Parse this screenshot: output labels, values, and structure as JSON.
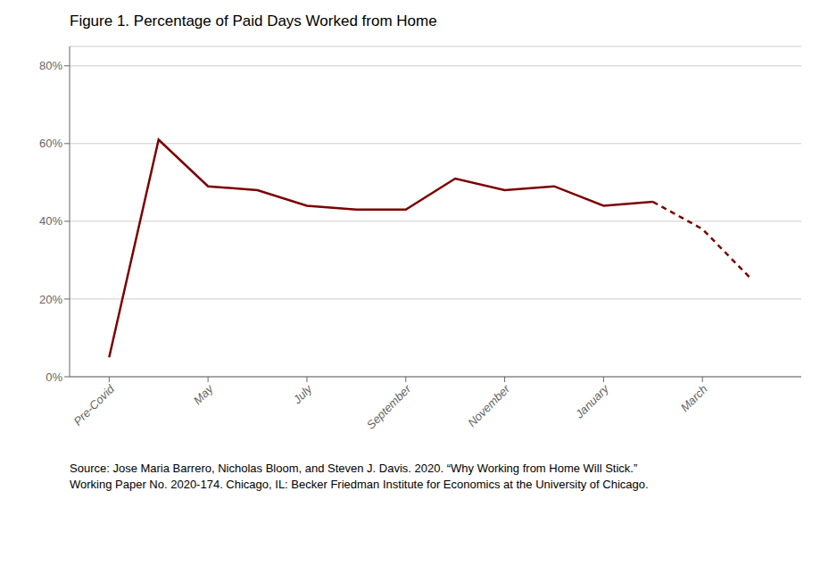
{
  "chart_data": {
    "type": "line",
    "title": "Figure 1. Percentage of Paid Days Worked from Home",
    "x": [
      0,
      1,
      2,
      3,
      4,
      5,
      6,
      7,
      8,
      9,
      10,
      11,
      12,
      13
    ],
    "series": [
      {
        "color": "#7B0000",
        "line_style": "solid",
        "values": [
          5,
          61,
          49,
          48,
          44,
          43,
          43,
          51,
          48,
          49,
          44,
          45,
          null,
          null
        ]
      },
      {
        "color": "#7B0000",
        "line_style": "dashed",
        "values": [
          null,
          null,
          null,
          null,
          null,
          null,
          null,
          null,
          null,
          null,
          null,
          45,
          38,
          25
        ]
      }
    ],
    "xlim": [
      -0.8,
      14
    ],
    "xticks": [
      {
        "value": 0,
        "label": "Pre-Covid"
      },
      {
        "value": 2,
        "label": "May"
      },
      {
        "value": 4,
        "label": "July"
      },
      {
        "value": 6,
        "label": "September"
      },
      {
        "value": 8,
        "label": "November"
      },
      {
        "value": 10,
        "label": "January"
      },
      {
        "value": 12,
        "label": "March"
      }
    ],
    "ylim": [
      0,
      85
    ],
    "yticks": [
      {
        "value": 0,
        "label": "0%"
      },
      {
        "value": 20,
        "label": "20%"
      },
      {
        "value": 40,
        "label": "40%"
      },
      {
        "value": 60,
        "label": "60%"
      },
      {
        "value": 80,
        "label": "80%"
      }
    ],
    "grid": true,
    "annotations": [
      "Source: Jose Maria Barrero, Nicholas Bloom, and Steven J. Davis. 2020. “Why Working from Home Will Stick.”\nWorking Paper No. 2020-174. Chicago, IL: Becker Friedman Institute for Economics at the University of Chicago."
    ]
  }
}
